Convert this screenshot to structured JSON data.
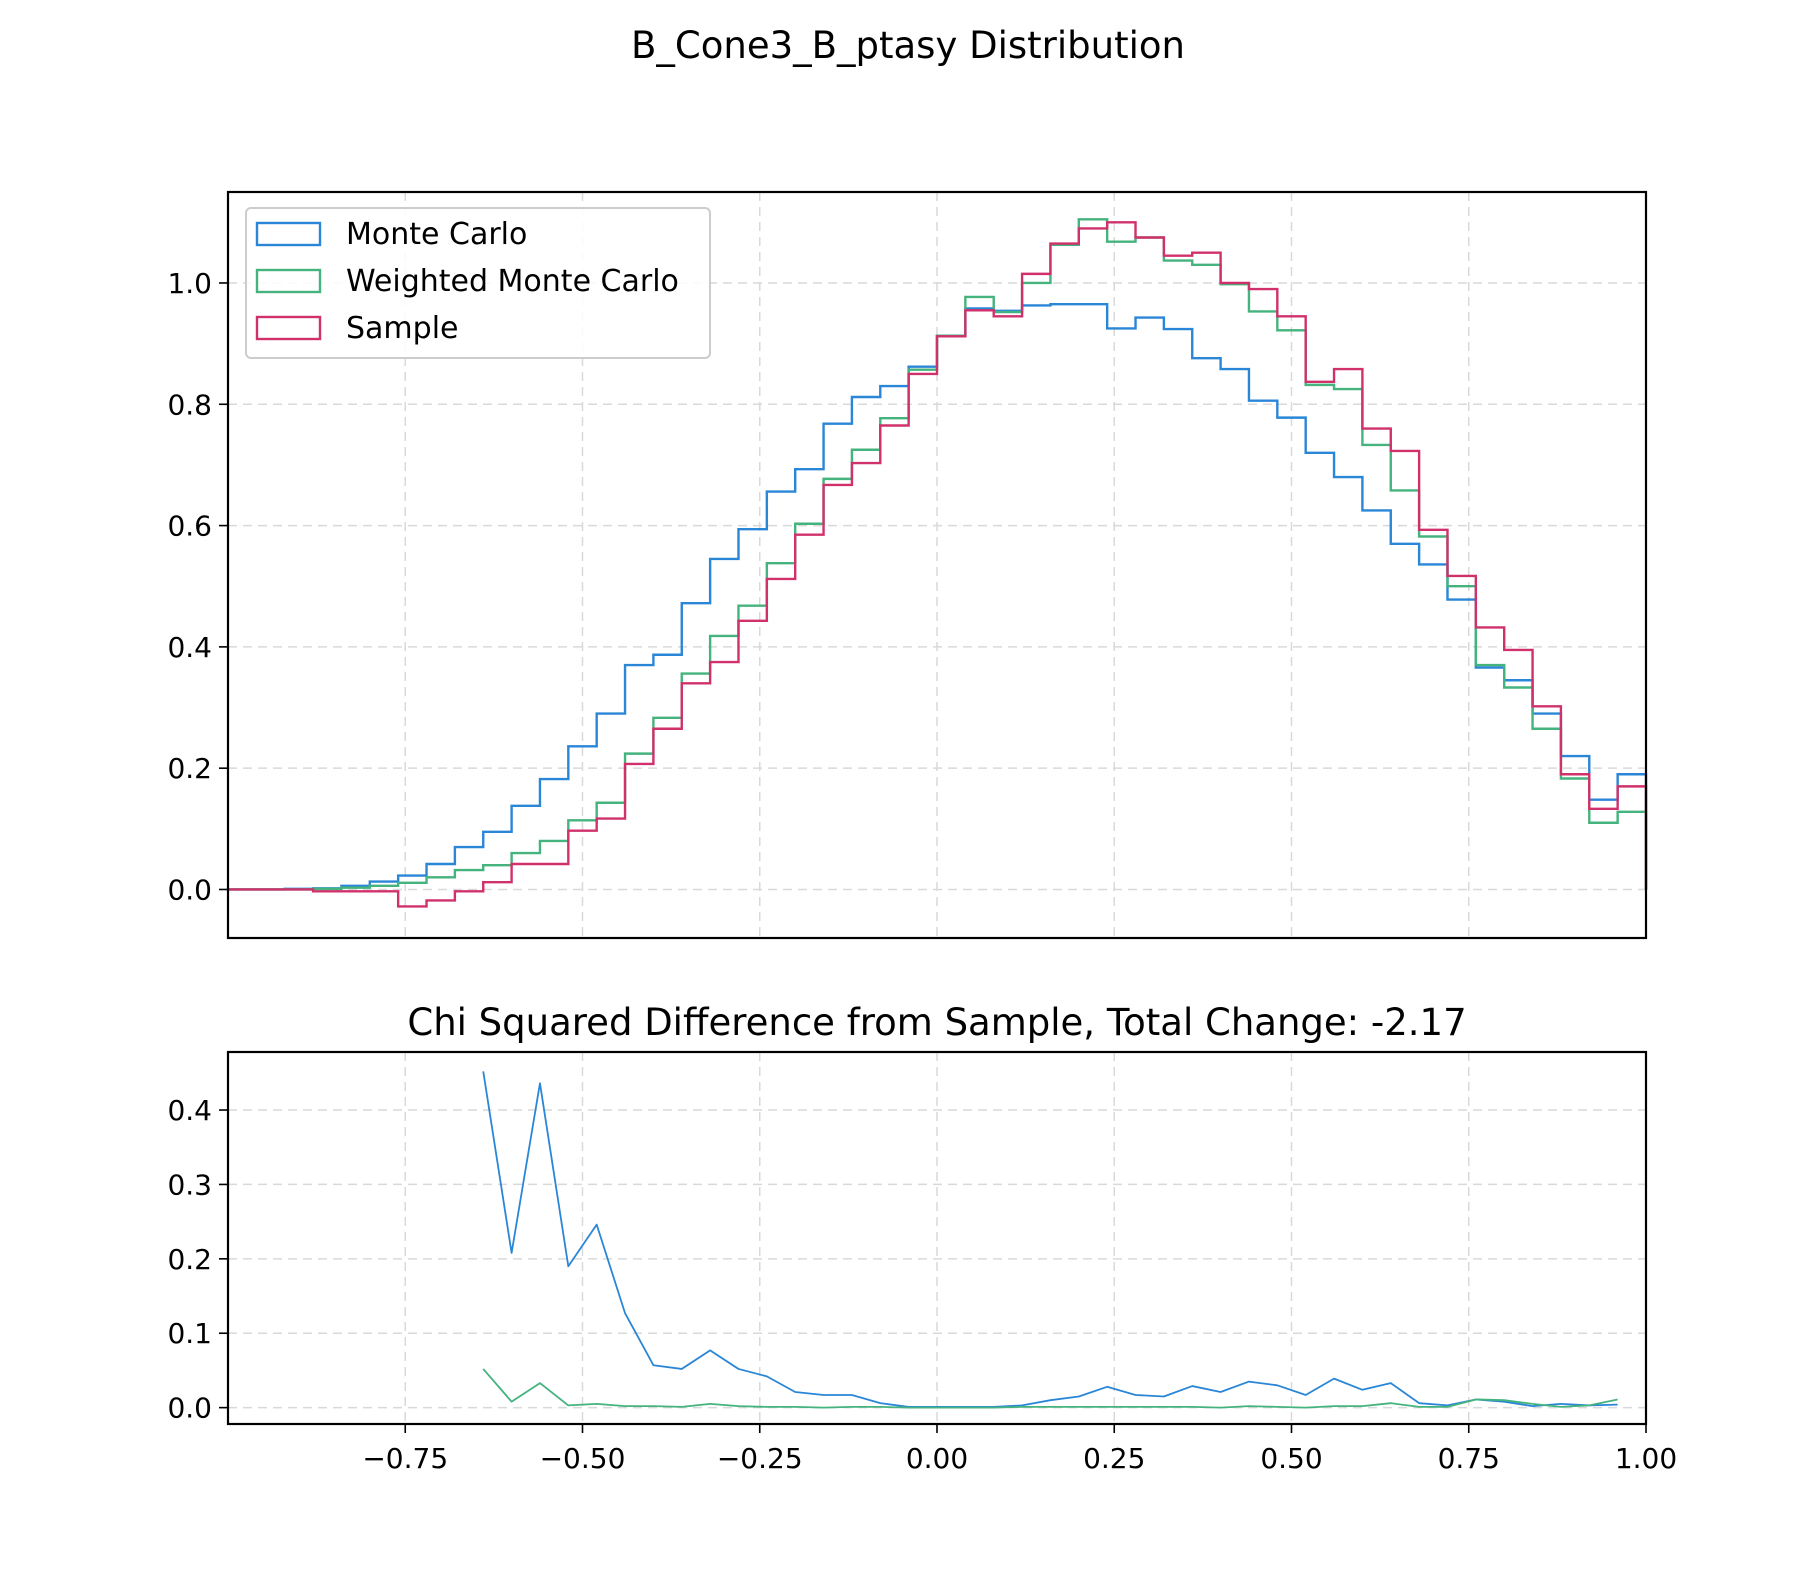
{
  "figure": {
    "title": "B_Cone3_B_ptasy Distribution"
  },
  "colors": {
    "monte_carlo": "#2a86d6",
    "weighted_monte_carlo": "#45b37d",
    "sample": "#d1316b"
  },
  "chart_data": [
    {
      "type": "step",
      "title": "",
      "xlim": [
        -1.0,
        1.0
      ],
      "ylim": [
        -0.08,
        1.15
      ],
      "xticks": [],
      "yticks": [
        0.0,
        0.2,
        0.4,
        0.6,
        0.8,
        1.0
      ],
      "ytick_labels": [
        "0.0",
        "0.2",
        "0.4",
        "0.6",
        "0.8",
        "1.0"
      ],
      "grid": true,
      "legend_position": "upper-left",
      "bin_edges": [
        -1.0,
        -0.96,
        -0.92,
        -0.88,
        -0.84,
        -0.8,
        -0.76,
        -0.72,
        -0.68,
        -0.64,
        -0.6,
        -0.56,
        -0.52,
        -0.48,
        -0.44,
        -0.4,
        -0.36,
        -0.32,
        -0.28,
        -0.24,
        -0.2,
        -0.16,
        -0.12,
        -0.08,
        -0.04,
        0.0,
        0.04,
        0.08,
        0.12,
        0.16,
        0.2,
        0.24,
        0.28,
        0.32,
        0.36,
        0.4,
        0.44,
        0.48,
        0.52,
        0.56,
        0.6,
        0.64,
        0.68,
        0.72,
        0.76,
        0.8,
        0.84,
        0.88,
        0.92,
        0.96,
        1.0
      ],
      "series": [
        {
          "name": "Monte Carlo",
          "color_key": "monte_carlo",
          "values": [
            0.0,
            0.0,
            0.001,
            0.002,
            0.006,
            0.013,
            0.023,
            0.042,
            0.07,
            0.095,
            0.138,
            0.182,
            0.236,
            0.29,
            0.37,
            0.387,
            0.472,
            0.545,
            0.594,
            0.656,
            0.693,
            0.768,
            0.812,
            0.83,
            0.862,
            0.913,
            0.958,
            0.954,
            0.963,
            0.965,
            0.965,
            0.925,
            0.943,
            0.924,
            0.876,
            0.858,
            0.806,
            0.778,
            0.72,
            0.68,
            0.625,
            0.57,
            0.536,
            0.478,
            0.366,
            0.345,
            0.29,
            0.22,
            0.148,
            0.19
          ]
        },
        {
          "name": "Weighted Monte Carlo",
          "color_key": "weighted_monte_carlo",
          "values": [
            0.0,
            0.0,
            0.0,
            0.001,
            0.003,
            0.006,
            0.011,
            0.02,
            0.032,
            0.04,
            0.06,
            0.08,
            0.114,
            0.143,
            0.224,
            0.283,
            0.356,
            0.418,
            0.468,
            0.538,
            0.603,
            0.677,
            0.725,
            0.777,
            0.857,
            0.913,
            0.977,
            0.952,
            1.0,
            1.063,
            1.105,
            1.068,
            1.075,
            1.037,
            1.03,
            0.998,
            0.953,
            0.922,
            0.832,
            0.825,
            0.733,
            0.658,
            0.582,
            0.5,
            0.37,
            0.333,
            0.265,
            0.183,
            0.11,
            0.128
          ]
        },
        {
          "name": "Sample",
          "color_key": "sample",
          "values": [
            0.0,
            0.0,
            0.0,
            -0.003,
            -0.003,
            -0.003,
            -0.028,
            -0.018,
            -0.003,
            0.012,
            0.042,
            0.042,
            0.097,
            0.117,
            0.207,
            0.265,
            0.34,
            0.375,
            0.443,
            0.512,
            0.585,
            0.667,
            0.703,
            0.765,
            0.85,
            0.912,
            0.955,
            0.945,
            1.015,
            1.065,
            1.09,
            1.1,
            1.075,
            1.045,
            1.05,
            1.0,
            0.99,
            0.945,
            0.837,
            0.858,
            0.76,
            0.723,
            0.593,
            0.517,
            0.432,
            0.395,
            0.302,
            0.19,
            0.133,
            0.17
          ]
        }
      ]
    },
    {
      "type": "line",
      "title": "Chi Squared Difference from Sample, Total Change: -2.17",
      "xlim": [
        -1.0,
        1.0
      ],
      "ylim": [
        -0.022,
        0.478
      ],
      "xticks": [
        -0.75,
        -0.5,
        -0.25,
        0.0,
        0.25,
        0.5,
        0.75,
        1.0
      ],
      "xtick_labels": [
        "−0.75",
        "−0.50",
        "−0.25",
        "0.00",
        "0.25",
        "0.50",
        "0.75",
        "1.00"
      ],
      "yticks": [
        0.0,
        0.1,
        0.2,
        0.3,
        0.4
      ],
      "ytick_labels": [
        "0.0",
        "0.1",
        "0.2",
        "0.3",
        "0.4"
      ],
      "grid": true,
      "x": [
        -0.64,
        -0.6,
        -0.56,
        -0.52,
        -0.48,
        -0.44,
        -0.4,
        -0.36,
        -0.32,
        -0.28,
        -0.24,
        -0.2,
        -0.16,
        -0.12,
        -0.08,
        -0.04,
        0.0,
        0.04,
        0.08,
        0.12,
        0.16,
        0.2,
        0.24,
        0.28,
        0.32,
        0.36,
        0.4,
        0.44,
        0.48,
        0.52,
        0.56,
        0.6,
        0.64,
        0.68,
        0.72,
        0.76,
        0.8,
        0.84,
        0.88,
        0.92,
        0.96
      ],
      "series": [
        {
          "color_key": "monte_carlo",
          "values": [
            0.452,
            0.208,
            0.436,
            0.19,
            0.246,
            0.127,
            0.057,
            0.052,
            0.077,
            0.052,
            0.042,
            0.021,
            0.017,
            0.017,
            0.006,
            0.001,
            0.001,
            0.001,
            0.001,
            0.003,
            0.01,
            0.015,
            0.028,
            0.017,
            0.015,
            0.029,
            0.021,
            0.035,
            0.03,
            0.017,
            0.039,
            0.024,
            0.033,
            0.006,
            0.003,
            0.011,
            0.008,
            0.002,
            0.005,
            0.003,
            0.004
          ]
        },
        {
          "color_key": "weighted_monte_carlo",
          "values": [
            0.052,
            0.008,
            0.033,
            0.003,
            0.005,
            0.002,
            0.002,
            0.001,
            0.005,
            0.002,
            0.001,
            0.001,
            0.0,
            0.001,
            0.001,
            0.0,
            0.0,
            0.0,
            0.0,
            0.001,
            0.001,
            0.001,
            0.001,
            0.001,
            0.001,
            0.001,
            0.0,
            0.002,
            0.001,
            0.0,
            0.002,
            0.002,
            0.006,
            0.001,
            0.001,
            0.011,
            0.01,
            0.005,
            0.001,
            0.003,
            0.011
          ]
        }
      ]
    }
  ]
}
